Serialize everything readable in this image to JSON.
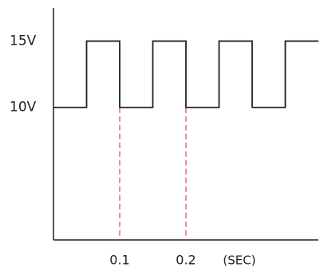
{
  "chart_data": {
    "type": "line",
    "x": [
      0,
      0.05,
      0.05,
      0.1,
      0.1,
      0.15,
      0.15,
      0.2,
      0.2,
      0.25,
      0.25,
      0.3,
      0.3,
      0.35,
      0.35,
      0.4
    ],
    "values": [
      10,
      10,
      15,
      15,
      10,
      10,
      15,
      15,
      10,
      10,
      15,
      15,
      10,
      10,
      15,
      15
    ],
    "color": "#222222",
    "xlim": [
      0,
      0.4
    ],
    "xticks": [
      0.1,
      0.2
    ],
    "x_label": "(SEC)",
    "ylim": [
      0,
      17.5
    ],
    "yticks": [
      {
        "value": 15,
        "label": "15V"
      },
      {
        "value": 10,
        "label": "10V"
      }
    ],
    "grid_color": "#e0405a"
  }
}
